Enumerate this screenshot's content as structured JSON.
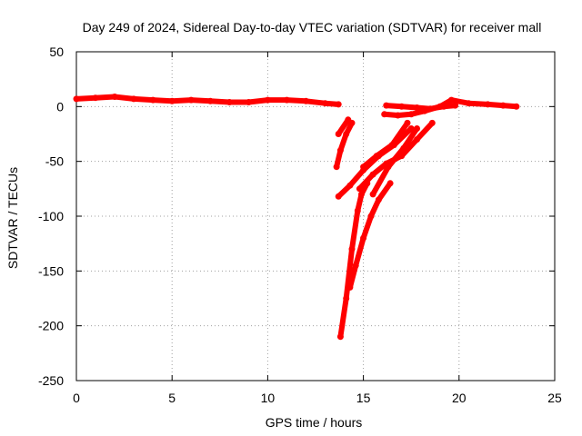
{
  "chart_data": {
    "type": "scatter",
    "title": "Day 249 of 2024, Sidereal Day-to-day VTEC variation (SDTVAR) for receiver mall",
    "xlabel": "GPS time / hours",
    "ylabel": "SDTVAR / TECUs",
    "xlim": [
      0,
      25
    ],
    "ylim": [
      -250,
      50
    ],
    "xticks": [
      0,
      5,
      10,
      15,
      20,
      25
    ],
    "yticks": [
      -250,
      -200,
      -150,
      -100,
      -50,
      0,
      50
    ],
    "grid": true,
    "legend": "none",
    "marker_color": "#ff0000",
    "series": [
      {
        "x": [
          0,
          1,
          2,
          3,
          4,
          5,
          6,
          7,
          8,
          9,
          10,
          11,
          12,
          13,
          13.7
        ],
        "y": [
          7,
          8,
          9,
          7,
          6,
          5,
          6,
          5,
          4,
          4,
          6,
          6,
          5,
          3,
          2
        ]
      },
      {
        "x": [
          16.1,
          16.8,
          17.5,
          18.2,
          19,
          19.6,
          20.5,
          21.5,
          22.3,
          23
        ],
        "y": [
          -7,
          -8,
          -7,
          -4,
          0,
          6,
          3,
          2,
          1,
          0
        ]
      },
      {
        "x": [
          16.2,
          17,
          17.8,
          18.5,
          19.2,
          19.8
        ],
        "y": [
          1,
          0,
          -1,
          -2,
          0,
          1
        ]
      },
      {
        "x": [
          13.8,
          14.1,
          14.4,
          14.7,
          14.9,
          15.2
        ],
        "y": [
          -210,
          -175,
          -130,
          -95,
          -80,
          -70
        ]
      },
      {
        "x": [
          14.3,
          14.6,
          15,
          15.4,
          15.8,
          16.4
        ],
        "y": [
          -165,
          -145,
          -120,
          -100,
          -85,
          -70
        ]
      },
      {
        "x": [
          13.7,
          14.3,
          15,
          15.8,
          16.6,
          17.5
        ],
        "y": [
          -82,
          -72,
          -58,
          -45,
          -35,
          -20
        ]
      },
      {
        "x": [
          14.8,
          15.5,
          16.2,
          17,
          17.8,
          18.6
        ],
        "y": [
          -75,
          -62,
          -52,
          -45,
          -30,
          -15
        ]
      },
      {
        "x": [
          15,
          15.7,
          16.5,
          17.3
        ],
        "y": [
          -55,
          -45,
          -35,
          -15
        ]
      },
      {
        "x": [
          15.5,
          16.3,
          17.1,
          17.8
        ],
        "y": [
          -80,
          -55,
          -38,
          -20
        ]
      },
      {
        "x": [
          13.6,
          13.8,
          14.1,
          14.4
        ],
        "y": [
          -55,
          -40,
          -25,
          -15
        ]
      },
      {
        "x": [
          13.7,
          14.2
        ],
        "y": [
          -25,
          -12
        ]
      }
    ]
  }
}
